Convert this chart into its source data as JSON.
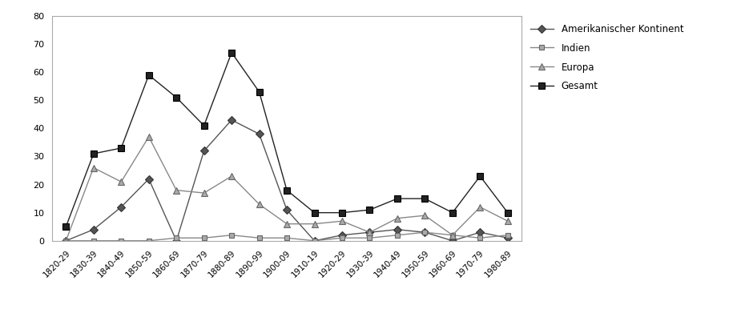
{
  "categories": [
    "1820-29",
    "1830-39",
    "1840-49",
    "1850-59",
    "1860-69",
    "1870-79",
    "1880-89",
    "1890-99",
    "1900-09",
    "1910-19",
    "1920-29",
    "1930-39",
    "1940-49",
    "1950-59",
    "1960-69",
    "1970-79",
    "1980-89"
  ],
  "amerikanischer_kontinent": [
    0,
    4,
    12,
    22,
    0,
    32,
    43,
    38,
    11,
    0,
    2,
    3,
    4,
    3,
    0,
    3,
    1
  ],
  "indien": [
    0,
    0,
    0,
    0,
    1,
    1,
    2,
    1,
    1,
    0,
    1,
    1,
    2,
    3,
    2,
    1,
    2
  ],
  "europa": [
    0,
    26,
    21,
    37,
    18,
    17,
    23,
    13,
    6,
    6,
    7,
    3,
    8,
    9,
    2,
    12,
    7
  ],
  "gesamt": [
    5,
    31,
    33,
    59,
    51,
    41,
    67,
    53,
    18,
    10,
    10,
    11,
    15,
    15,
    10,
    23,
    10
  ],
  "series_labels": [
    "Amerikanischer Kontinent",
    "Indien",
    "Europa",
    "Gesamt"
  ],
  "ylim": [
    0,
    80
  ],
  "yticks": [
    0,
    10,
    20,
    30,
    40,
    50,
    60,
    70,
    80
  ],
  "bg_color": "#ffffff",
  "figsize": [
    9.3,
    4.01
  ],
  "dpi": 100
}
